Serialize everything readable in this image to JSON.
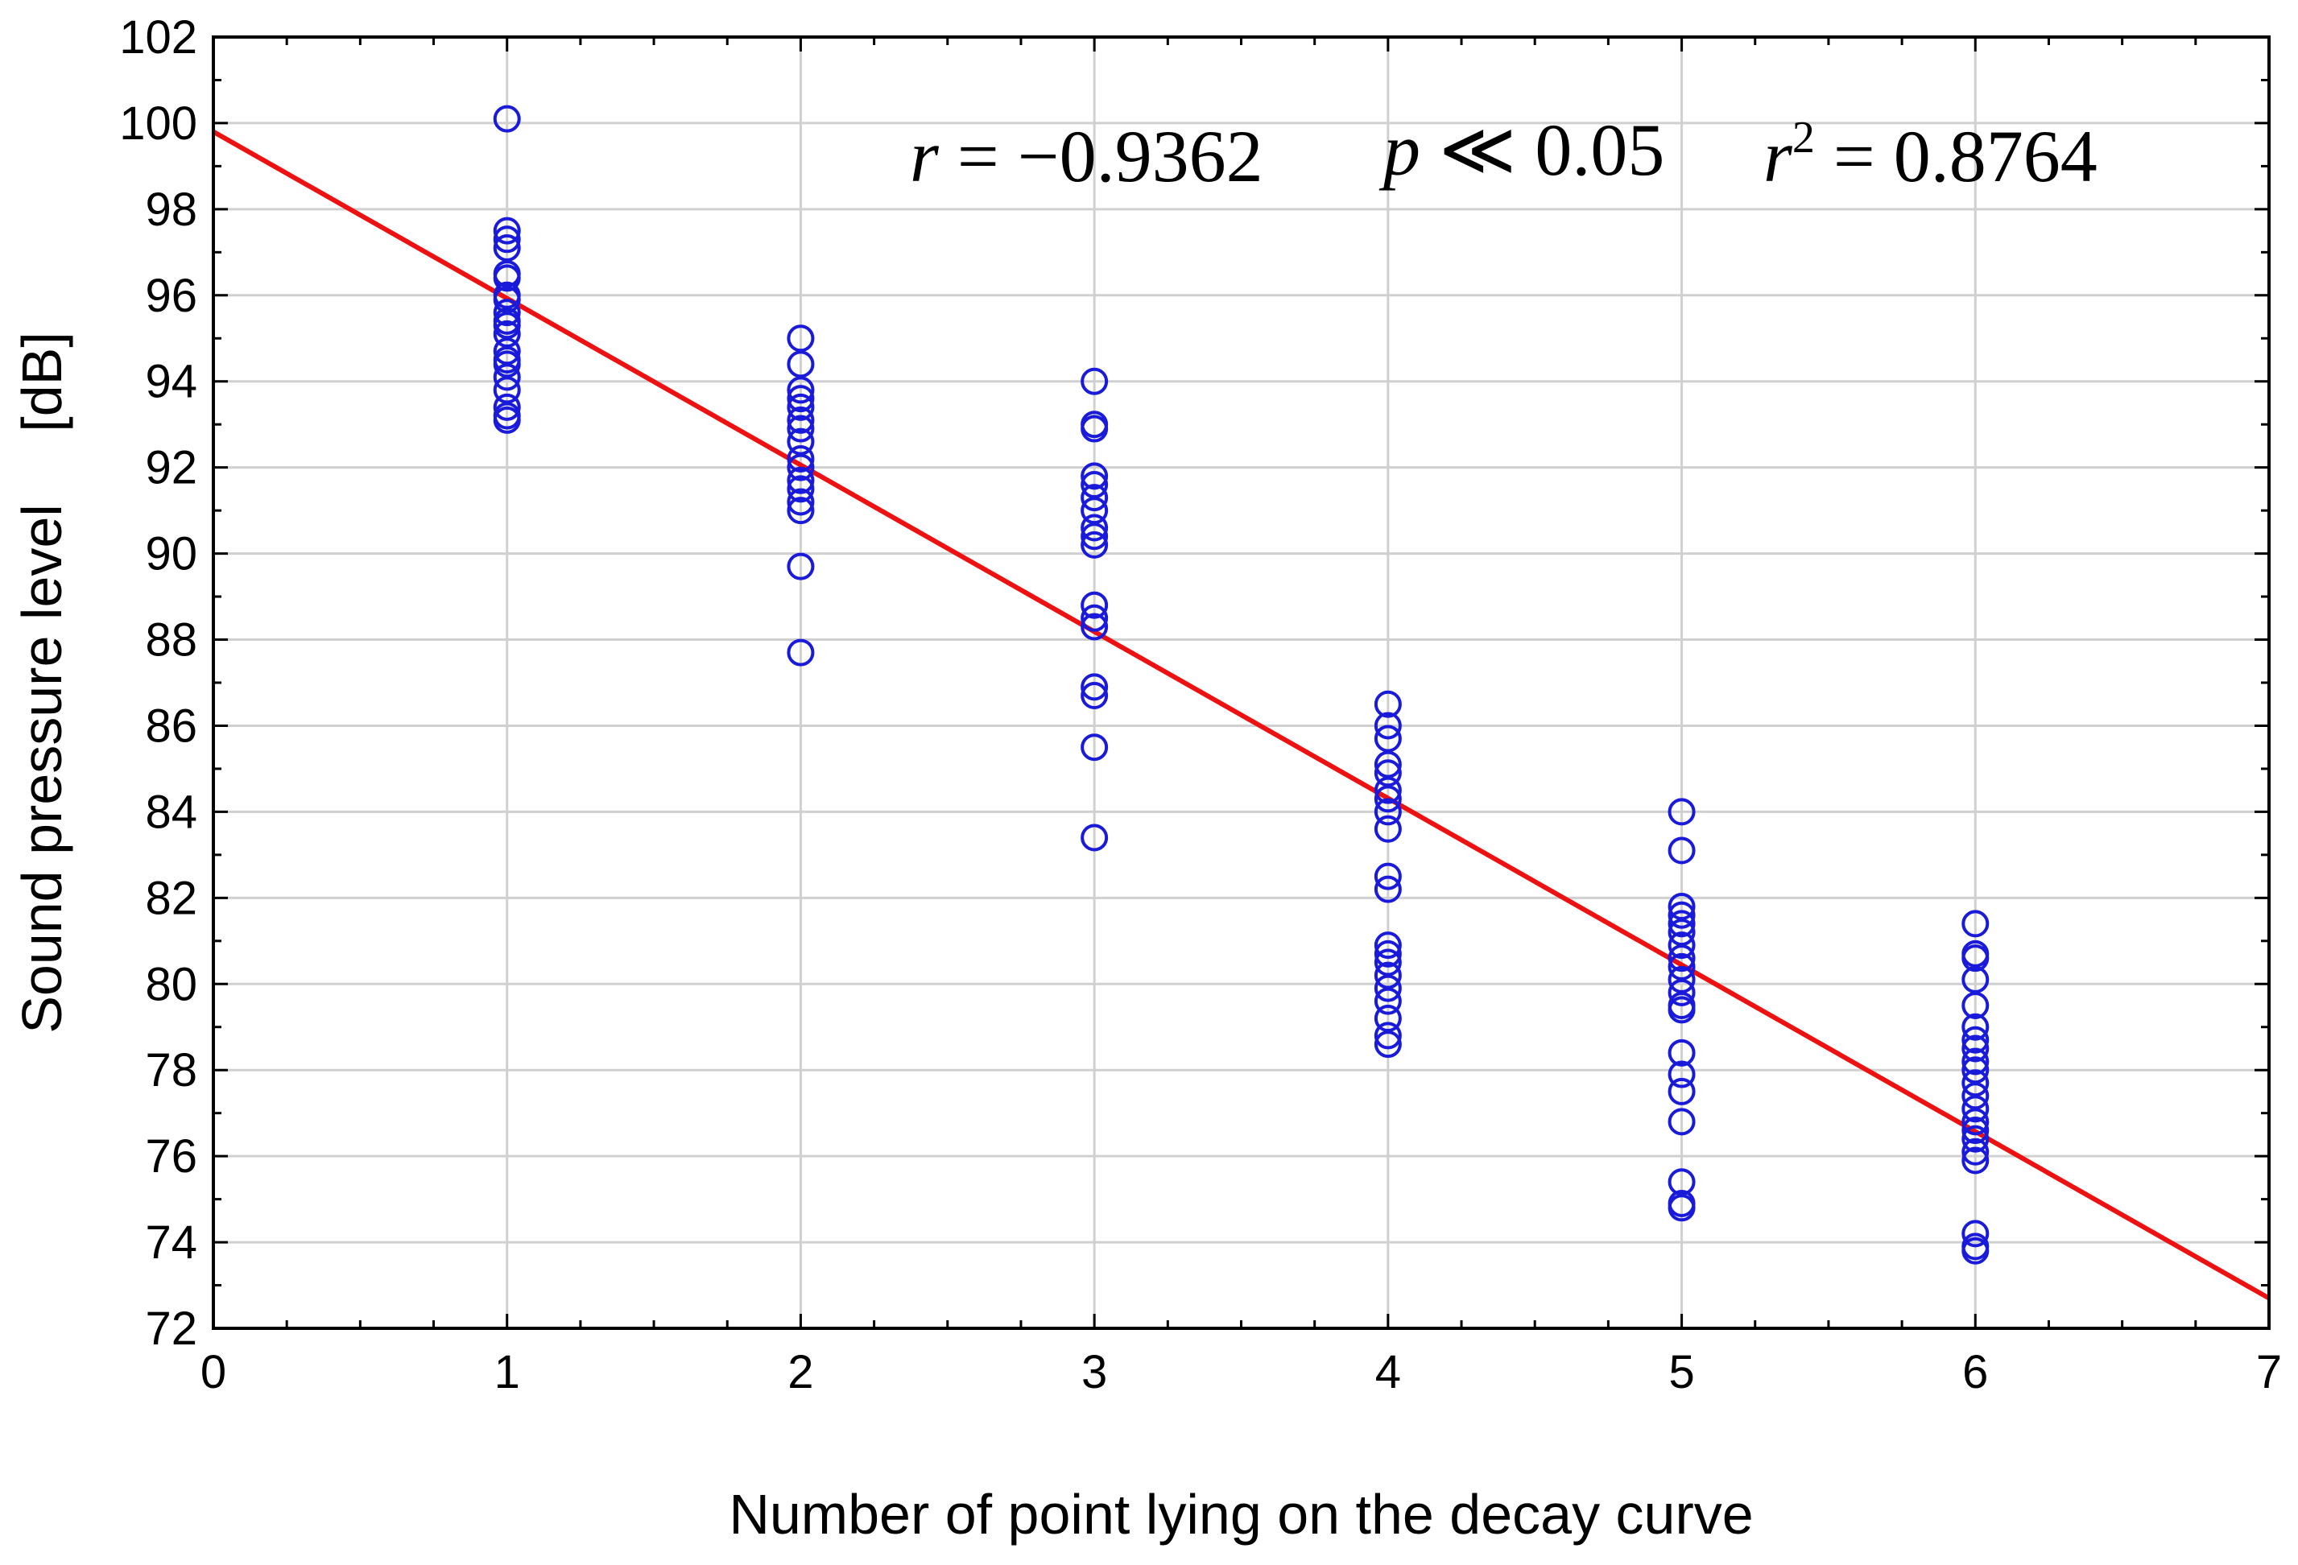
{
  "chart_data": {
    "type": "scatter",
    "title": "",
    "xlabel": "Number of point lying on the decay curve",
    "ylabel": "Sound pressure level",
    "ylabel_unit": "[dB]",
    "xlim": [
      0,
      7
    ],
    "ylim": [
      72,
      102
    ],
    "x_ticks": [
      0,
      1,
      2,
      3,
      4,
      5,
      6,
      7
    ],
    "y_ticks": [
      72,
      74,
      76,
      78,
      80,
      82,
      84,
      86,
      88,
      90,
      92,
      94,
      96,
      98,
      100,
      102
    ],
    "grid": true,
    "colors": {
      "points": "#1a1adb",
      "fit_line": "#ee1111",
      "grid": "#d0d0d0",
      "axes": "#000000"
    },
    "points": [
      {
        "x": 1,
        "y": 100.1
      },
      {
        "x": 1,
        "y": 97.5
      },
      {
        "x": 1,
        "y": 97.3
      },
      {
        "x": 1,
        "y": 97.1
      },
      {
        "x": 1,
        "y": 96.5
      },
      {
        "x": 1,
        "y": 96.4
      },
      {
        "x": 1,
        "y": 96.0
      },
      {
        "x": 1,
        "y": 95.9
      },
      {
        "x": 1,
        "y": 95.6
      },
      {
        "x": 1,
        "y": 95.4
      },
      {
        "x": 1,
        "y": 95.3
      },
      {
        "x": 1,
        "y": 95.1
      },
      {
        "x": 1,
        "y": 94.7
      },
      {
        "x": 1,
        "y": 94.5
      },
      {
        "x": 1,
        "y": 94.4
      },
      {
        "x": 1,
        "y": 94.1
      },
      {
        "x": 1,
        "y": 93.8
      },
      {
        "x": 1,
        "y": 93.4
      },
      {
        "x": 1,
        "y": 93.2
      },
      {
        "x": 1,
        "y": 93.1
      },
      {
        "x": 2,
        "y": 95.0
      },
      {
        "x": 2,
        "y": 94.4
      },
      {
        "x": 2,
        "y": 93.8
      },
      {
        "x": 2,
        "y": 93.6
      },
      {
        "x": 2,
        "y": 93.4
      },
      {
        "x": 2,
        "y": 93.1
      },
      {
        "x": 2,
        "y": 92.9
      },
      {
        "x": 2,
        "y": 92.6
      },
      {
        "x": 2,
        "y": 92.2
      },
      {
        "x": 2,
        "y": 92.0
      },
      {
        "x": 2,
        "y": 91.7
      },
      {
        "x": 2,
        "y": 91.5
      },
      {
        "x": 2,
        "y": 91.2
      },
      {
        "x": 2,
        "y": 91.0
      },
      {
        "x": 2,
        "y": 89.7
      },
      {
        "x": 2,
        "y": 87.7
      },
      {
        "x": 3,
        "y": 94.0
      },
      {
        "x": 3,
        "y": 93.0
      },
      {
        "x": 3,
        "y": 92.9
      },
      {
        "x": 3,
        "y": 91.8
      },
      {
        "x": 3,
        "y": 91.6
      },
      {
        "x": 3,
        "y": 91.3
      },
      {
        "x": 3,
        "y": 91.0
      },
      {
        "x": 3,
        "y": 90.6
      },
      {
        "x": 3,
        "y": 90.4
      },
      {
        "x": 3,
        "y": 90.2
      },
      {
        "x": 3,
        "y": 88.8
      },
      {
        "x": 3,
        "y": 88.5
      },
      {
        "x": 3,
        "y": 88.3
      },
      {
        "x": 3,
        "y": 86.9
      },
      {
        "x": 3,
        "y": 86.7
      },
      {
        "x": 3,
        "y": 85.5
      },
      {
        "x": 3,
        "y": 83.4
      },
      {
        "x": 4,
        "y": 86.5
      },
      {
        "x": 4,
        "y": 86.0
      },
      {
        "x": 4,
        "y": 85.7
      },
      {
        "x": 4,
        "y": 85.1
      },
      {
        "x": 4,
        "y": 84.9
      },
      {
        "x": 4,
        "y": 84.5
      },
      {
        "x": 4,
        "y": 84.3
      },
      {
        "x": 4,
        "y": 84.0
      },
      {
        "x": 4,
        "y": 83.6
      },
      {
        "x": 4,
        "y": 82.5
      },
      {
        "x": 4,
        "y": 82.2
      },
      {
        "x": 4,
        "y": 80.9
      },
      {
        "x": 4,
        "y": 80.7
      },
      {
        "x": 4,
        "y": 80.5
      },
      {
        "x": 4,
        "y": 80.2
      },
      {
        "x": 4,
        "y": 79.9
      },
      {
        "x": 4,
        "y": 79.6
      },
      {
        "x": 4,
        "y": 79.2
      },
      {
        "x": 4,
        "y": 78.8
      },
      {
        "x": 4,
        "y": 78.6
      },
      {
        "x": 5,
        "y": 84.0
      },
      {
        "x": 5,
        "y": 83.1
      },
      {
        "x": 5,
        "y": 81.8
      },
      {
        "x": 5,
        "y": 81.6
      },
      {
        "x": 5,
        "y": 81.4
      },
      {
        "x": 5,
        "y": 81.2
      },
      {
        "x": 5,
        "y": 80.9
      },
      {
        "x": 5,
        "y": 80.6
      },
      {
        "x": 5,
        "y": 80.4
      },
      {
        "x": 5,
        "y": 80.1
      },
      {
        "x": 5,
        "y": 79.8
      },
      {
        "x": 5,
        "y": 79.5
      },
      {
        "x": 5,
        "y": 79.4
      },
      {
        "x": 5,
        "y": 78.4
      },
      {
        "x": 5,
        "y": 77.9
      },
      {
        "x": 5,
        "y": 77.5
      },
      {
        "x": 5,
        "y": 76.8
      },
      {
        "x": 5,
        "y": 75.4
      },
      {
        "x": 5,
        "y": 74.9
      },
      {
        "x": 5,
        "y": 74.8
      },
      {
        "x": 6,
        "y": 81.4
      },
      {
        "x": 6,
        "y": 80.7
      },
      {
        "x": 6,
        "y": 80.6
      },
      {
        "x": 6,
        "y": 80.1
      },
      {
        "x": 6,
        "y": 79.5
      },
      {
        "x": 6,
        "y": 79.0
      },
      {
        "x": 6,
        "y": 78.7
      },
      {
        "x": 6,
        "y": 78.5
      },
      {
        "x": 6,
        "y": 78.2
      },
      {
        "x": 6,
        "y": 78.0
      },
      {
        "x": 6,
        "y": 77.7
      },
      {
        "x": 6,
        "y": 77.4
      },
      {
        "x": 6,
        "y": 77.1
      },
      {
        "x": 6,
        "y": 76.8
      },
      {
        "x": 6,
        "y": 76.6
      },
      {
        "x": 6,
        "y": 76.4
      },
      {
        "x": 6,
        "y": 76.1
      },
      {
        "x": 6,
        "y": 75.9
      },
      {
        "x": 6,
        "y": 74.2
      },
      {
        "x": 6,
        "y": 73.9
      },
      {
        "x": 6,
        "y": 73.8
      }
    ],
    "fit_line": {
      "x": [
        0,
        7
      ],
      "y": [
        99.8,
        72.7
      ]
    },
    "annotations": {
      "r_symbol": "r",
      "r_value": " = −0.9362",
      "p_symbol": "p",
      "p_value": " ≪ 0.05",
      "r2_symbol": "r",
      "r2_sup": "2",
      "r2_value": " = 0.8764"
    }
  }
}
